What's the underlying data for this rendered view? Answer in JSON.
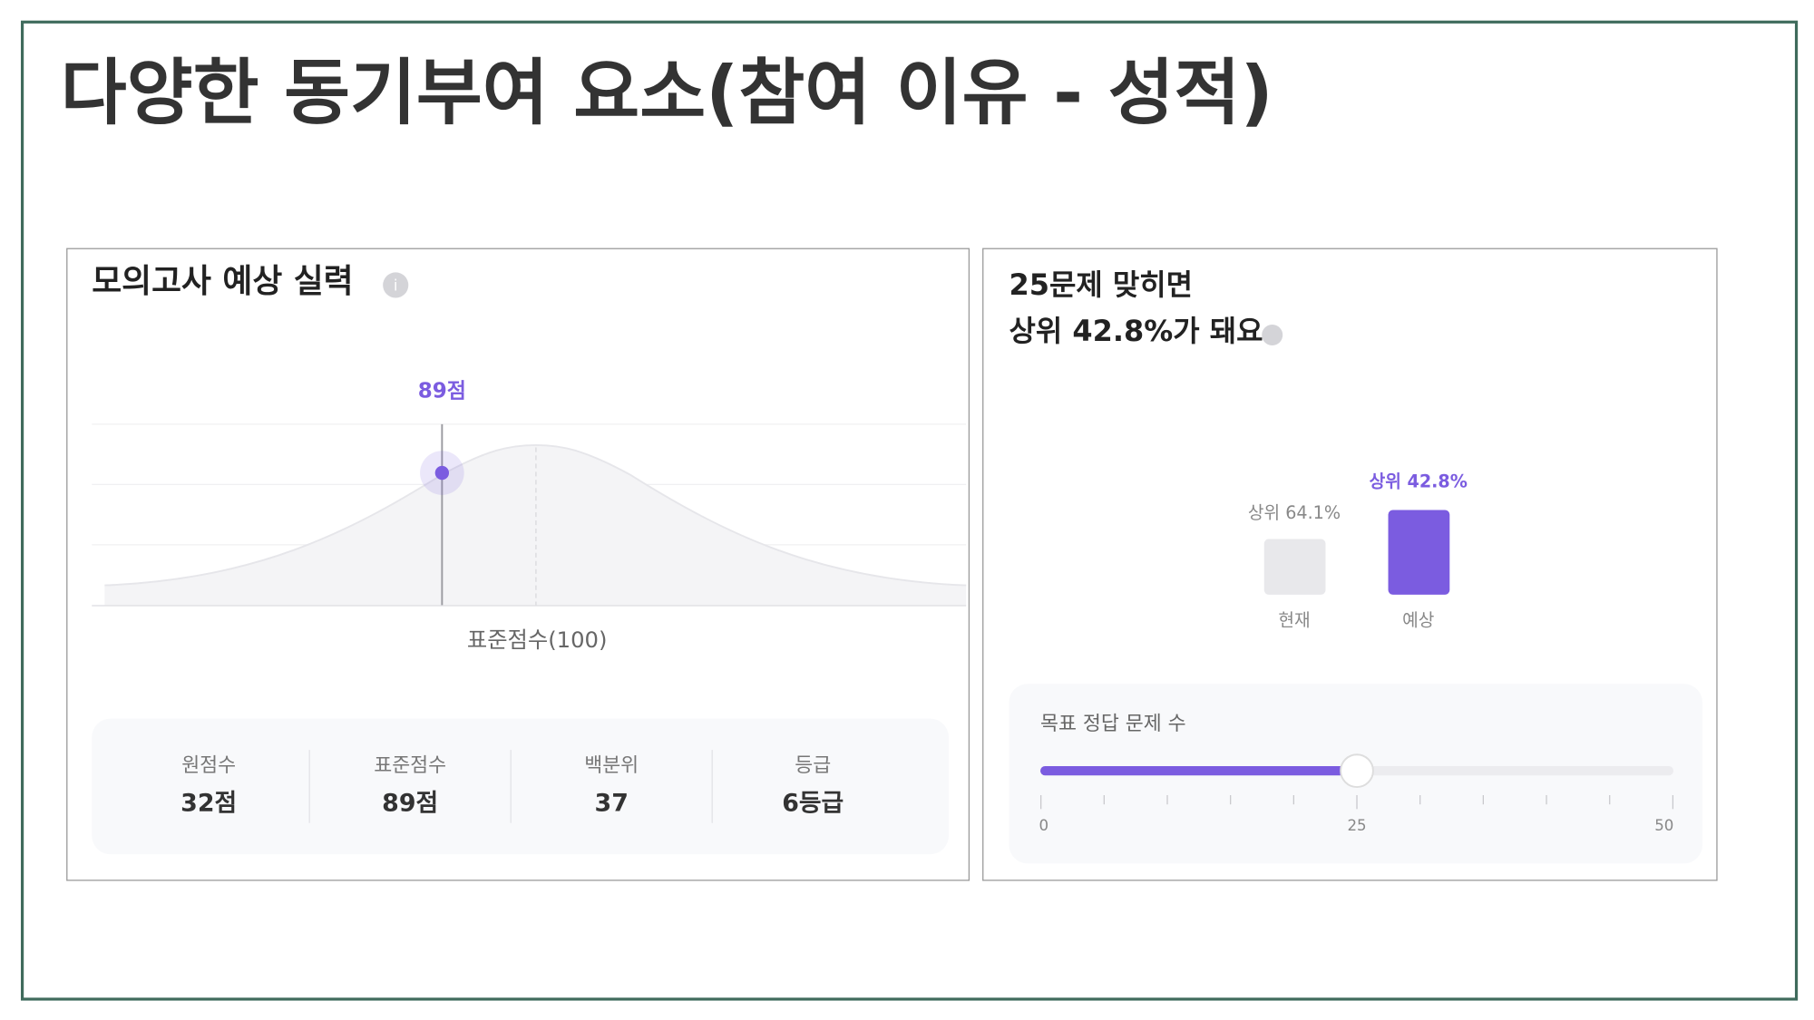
{
  "title": "다양한 동기부여 요소(참여 이유 - 성적)",
  "left_panel": {
    "title": "모의고사 예상 실력",
    "marker_label": "89점",
    "axis_label": "표준점수(100)",
    "stats": [
      {
        "label": "원점수",
        "value": "32점"
      },
      {
        "label": "표준점수",
        "value": "89점"
      },
      {
        "label": "백분위",
        "value": "37"
      },
      {
        "label": "등급",
        "value": "6등급"
      }
    ]
  },
  "right_panel": {
    "title_lines": [
      "25문제 맞히면",
      "상위 42.8%가 돼요"
    ],
    "bars": [
      {
        "label": "상위 64.1%",
        "category": "현재"
      },
      {
        "label": "상위 42.8%",
        "category": "예상"
      }
    ],
    "slider": {
      "label": "목표 정답 문제 수",
      "tick_labels": [
        "0",
        "25",
        "50"
      ]
    }
  }
}
